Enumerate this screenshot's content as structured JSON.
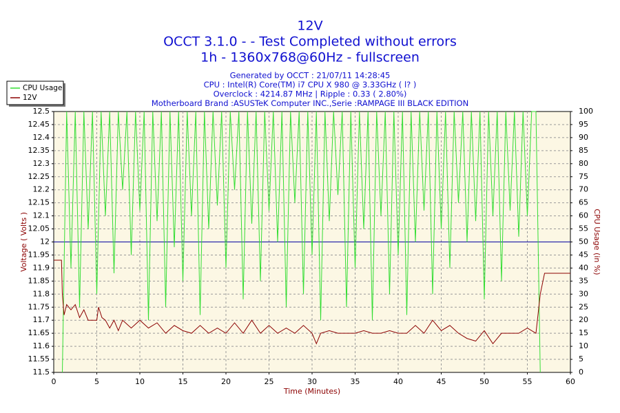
{
  "chart_data": {
    "type": "line",
    "title_lines": [
      "12V",
      "OCCT 3.1.0 -  - Test Completed without errors",
      "1h - 1360x768@60Hz - fullscreen"
    ],
    "subtitle_lines": [
      "Generated by OCCT : 21/07/11 14:28:45",
      "CPU : Intel(R) Core(TM) i7 CPU X 980 @ 3.33GHz (  l? )",
      "Overclock : 4214.87 MHz | Ripple : 0.33 ( 2.80%)",
      "Motherboard Brand :ASUSTeK Computer INC.,Serie :RAMPAGE III BLACK EDITION"
    ],
    "xlabel": "Time (Minutes)",
    "ylabel": "Voltage ( Volts )",
    "y2label": "CPU Usage (in %)",
    "xlim": [
      0,
      60
    ],
    "xticks": [
      0,
      5,
      10,
      15,
      20,
      25,
      30,
      35,
      40,
      45,
      50,
      55,
      60
    ],
    "ylim": [
      11.5,
      12.5
    ],
    "yticks": [
      11.5,
      11.55,
      11.6,
      11.65,
      11.7,
      11.75,
      11.8,
      11.85,
      11.9,
      11.95,
      12,
      12.05,
      12.1,
      12.15,
      12.2,
      12.25,
      12.3,
      12.35,
      12.4,
      12.45,
      12.5
    ],
    "y2lim": [
      0,
      100
    ],
    "y2ticks": [
      0,
      5,
      10,
      15,
      20,
      25,
      30,
      35,
      40,
      45,
      50,
      55,
      60,
      65,
      70,
      75,
      80,
      85,
      90,
      95,
      100
    ],
    "grid": true,
    "legend": "top-left",
    "hline": {
      "value": 12,
      "color": "#0000a0"
    },
    "series": [
      {
        "name": "CPU Usage",
        "color": "#33dd33",
        "axis": "y2",
        "x": [
          1,
          1.5,
          2,
          2.5,
          3,
          3.5,
          4,
          4.5,
          5,
          5.5,
          6,
          6.5,
          7,
          7.5,
          8,
          8.5,
          9,
          9.5,
          10,
          10.5,
          11,
          11.5,
          12,
          12.5,
          13,
          13.5,
          14,
          14.5,
          15,
          15.5,
          16,
          16.5,
          17,
          17.5,
          18,
          18.5,
          19,
          19.5,
          20,
          20.5,
          21,
          21.5,
          22,
          22.5,
          23,
          23.5,
          24,
          24.5,
          25,
          25.5,
          26,
          26.5,
          27,
          27.5,
          28,
          28.5,
          29,
          29.5,
          30,
          30.5,
          31,
          31.5,
          32,
          32.5,
          33,
          33.5,
          34,
          34.5,
          35,
          35.5,
          36,
          36.5,
          37,
          37.5,
          38,
          38.5,
          39,
          39.5,
          40,
          40.5,
          41,
          41.5,
          42,
          42.5,
          43,
          43.5,
          44,
          44.5,
          45,
          45.5,
          46,
          46.5,
          47,
          47.5,
          48,
          48.5,
          49,
          49.5,
          50,
          50.5,
          51,
          51.5,
          52,
          52.5,
          53,
          53.5,
          54,
          54.5,
          55,
          55.5,
          56,
          56.5
        ],
        "values": [
          0,
          100,
          40,
          100,
          25,
          100,
          55,
          100,
          30,
          100,
          60,
          100,
          38,
          100,
          70,
          100,
          45,
          100,
          62,
          100,
          20,
          100,
          58,
          100,
          25,
          100,
          48,
          100,
          35,
          100,
          60,
          100,
          22,
          100,
          55,
          100,
          64,
          100,
          40,
          100,
          70,
          100,
          28,
          100,
          57,
          100,
          35,
          100,
          62,
          100,
          50,
          100,
          25,
          100,
          65,
          100,
          30,
          100,
          45,
          100,
          20,
          100,
          58,
          100,
          68,
          100,
          25,
          100,
          40,
          100,
          55,
          100,
          20,
          100,
          60,
          100,
          30,
          100,
          45,
          100,
          22,
          100,
          50,
          100,
          62,
          100,
          30,
          100,
          55,
          100,
          40,
          100,
          65,
          100,
          50,
          100,
          58,
          100,
          28,
          100,
          60,
          100,
          35,
          100,
          62,
          100,
          52,
          100,
          60,
          100,
          100,
          0
        ]
      },
      {
        "name": "12V",
        "color": "#8b0000",
        "axis": "y",
        "x": [
          0,
          0.9,
          1,
          1.2,
          1.5,
          2,
          2.5,
          3,
          3.5,
          4,
          5,
          5.2,
          5.6,
          6,
          6.5,
          7,
          7.5,
          8,
          9,
          10,
          11,
          12,
          13,
          14,
          15,
          16,
          17,
          18,
          19,
          20,
          21,
          22,
          23,
          24,
          25,
          26,
          27,
          28,
          29,
          30,
          30.5,
          31,
          32,
          33,
          34,
          35,
          36,
          37,
          38,
          39,
          40,
          41,
          42,
          43,
          44,
          45,
          46,
          47,
          48,
          49,
          50,
          51,
          52,
          53,
          54,
          55,
          56,
          56.5,
          57,
          60
        ],
        "values": [
          11.93,
          11.93,
          11.8,
          11.72,
          11.76,
          11.74,
          11.76,
          11.71,
          11.74,
          11.7,
          11.7,
          11.75,
          11.71,
          11.7,
          11.67,
          11.7,
          11.66,
          11.7,
          11.67,
          11.7,
          11.67,
          11.69,
          11.65,
          11.68,
          11.66,
          11.65,
          11.68,
          11.65,
          11.67,
          11.65,
          11.69,
          11.65,
          11.7,
          11.65,
          11.68,
          11.65,
          11.67,
          11.65,
          11.68,
          11.65,
          11.61,
          11.65,
          11.66,
          11.65,
          11.65,
          11.65,
          11.66,
          11.65,
          11.65,
          11.66,
          11.65,
          11.65,
          11.68,
          11.65,
          11.7,
          11.66,
          11.68,
          11.65,
          11.63,
          11.62,
          11.66,
          11.61,
          11.65,
          11.65,
          11.65,
          11.67,
          11.65,
          11.8,
          11.88,
          11.88
        ]
      }
    ]
  }
}
